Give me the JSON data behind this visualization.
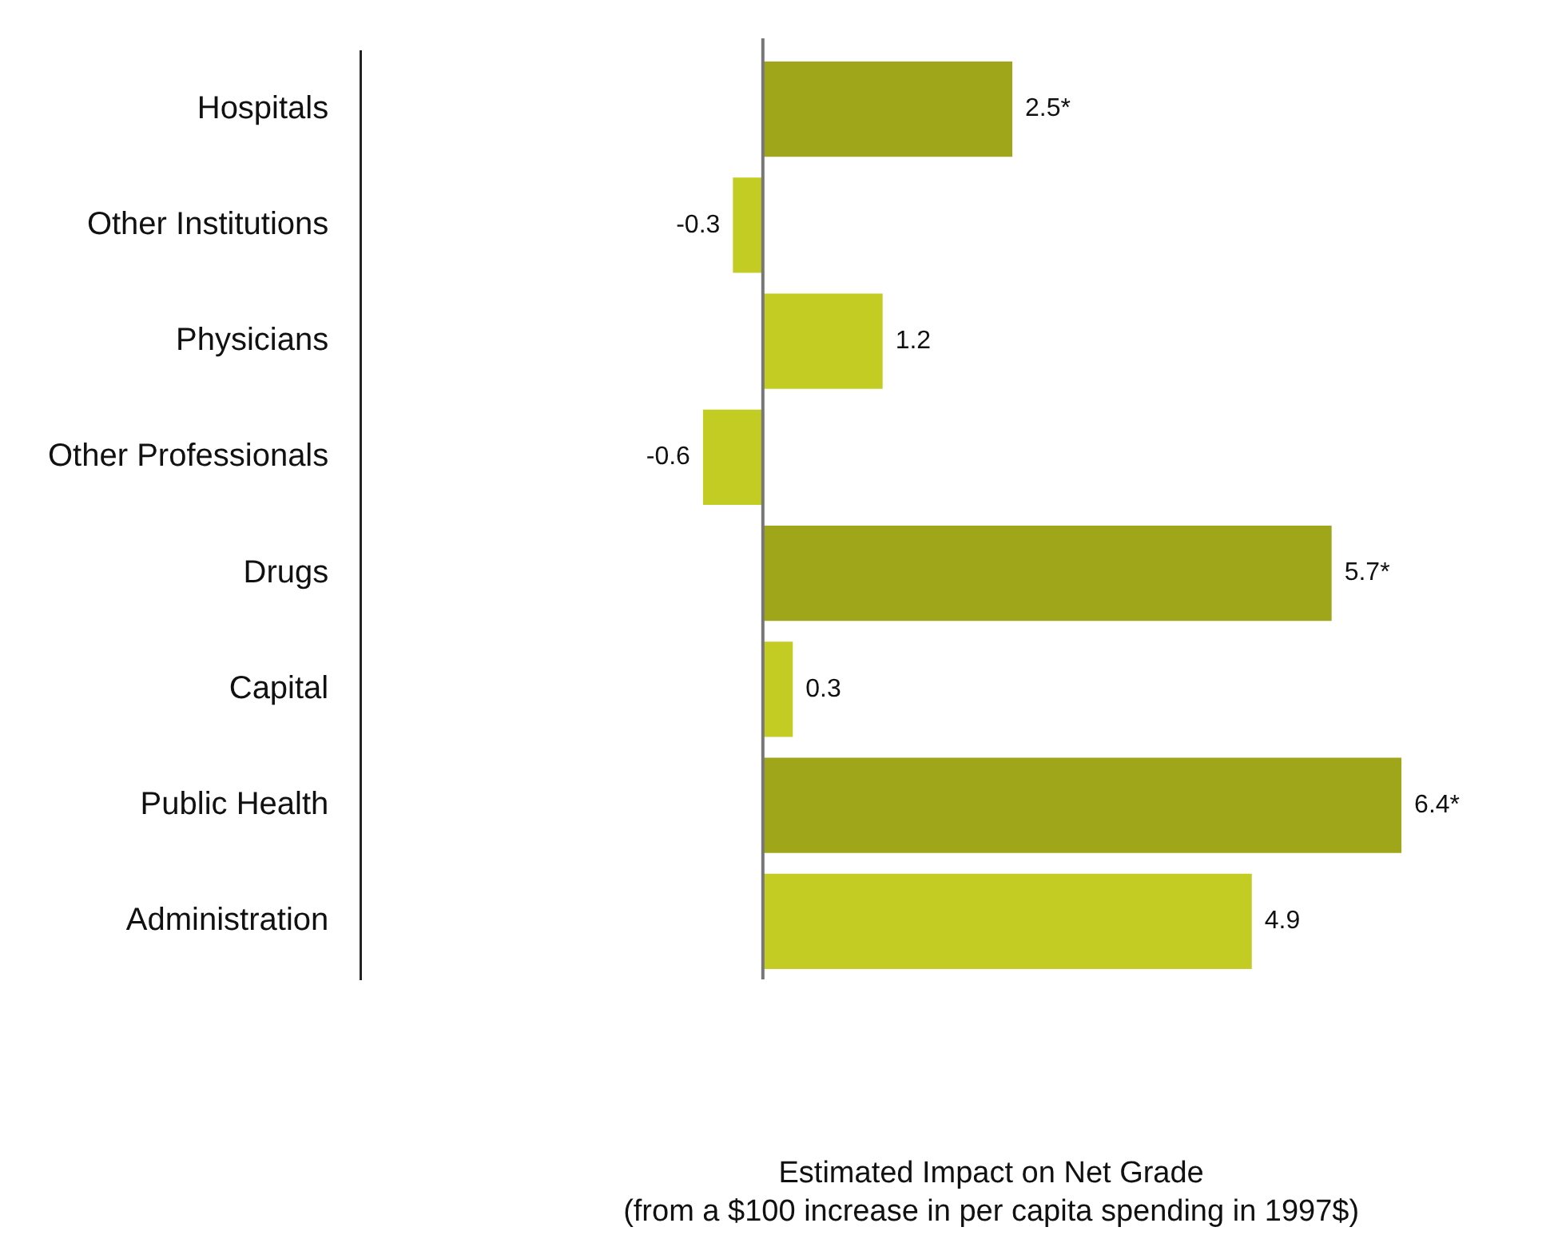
{
  "chart_data": {
    "type": "bar",
    "orientation": "horizontal",
    "annotations": [
      "Estimated Impact on Net Grade\n(from a $100 increase in per capita spending in 1997$)"
    ],
    "categories": [
      "Hospitals",
      "Other Institutions",
      "Physicians",
      "Other Professionals",
      "Drugs",
      "Capital",
      "Public Health",
      "Administration"
    ],
    "values": [
      2.5,
      -0.3,
      1.2,
      -0.6,
      5.7,
      0.3,
      6.4,
      4.9
    ],
    "colors": [
      "#a0a61a",
      "#c2cc22",
      "#c2cc22",
      "#c2cc22",
      "#a0a61a",
      "#c2cc22",
      "#a0a61a",
      "#c2cc22"
    ],
    "value_labels": [
      "2.5*",
      "-0.3",
      "1.2",
      "-0.6",
      "5.7*",
      "0.3",
      "6.4*",
      "4.9"
    ],
    "tick_labels": "y",
    "grid": false,
    "legend": false
  }
}
